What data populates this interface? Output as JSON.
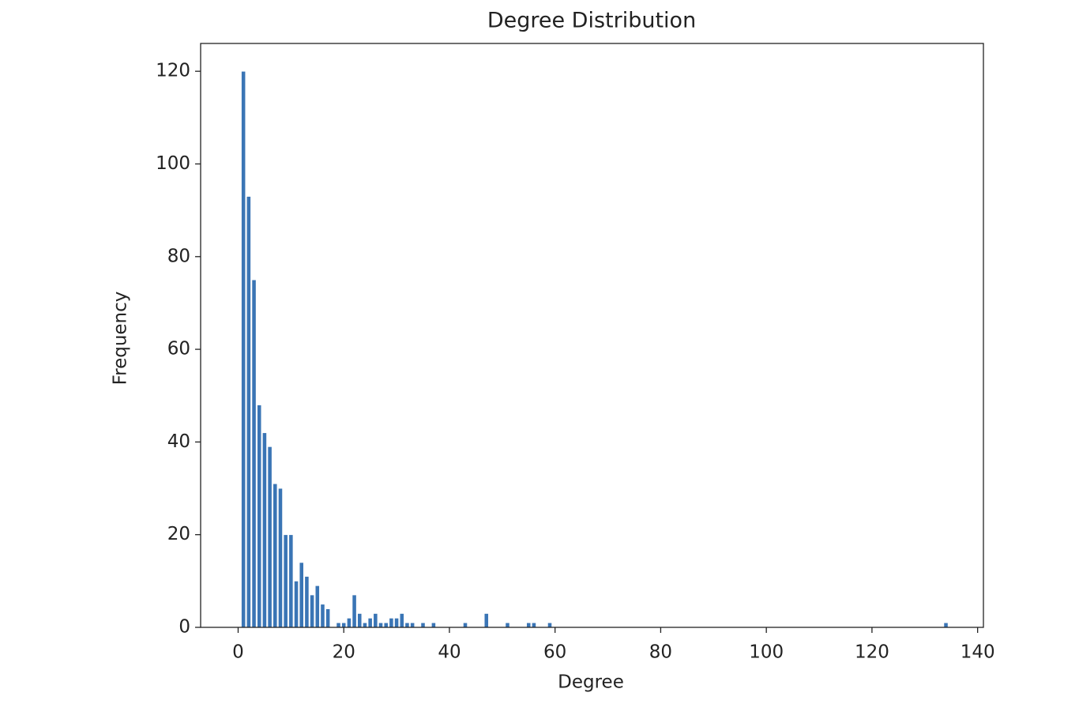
{
  "chart_data": {
    "type": "bar",
    "title": "Degree Distribution",
    "x_label": "Degree",
    "y_label": "Frequency",
    "x": [
      1,
      2,
      3,
      4,
      5,
      6,
      7,
      8,
      9,
      10,
      11,
      12,
      13,
      14,
      15,
      16,
      17,
      19,
      20,
      21,
      22,
      23,
      24,
      25,
      26,
      27,
      28,
      29,
      30,
      31,
      32,
      33,
      35,
      37,
      43,
      47,
      51,
      55,
      56,
      59,
      134
    ],
    "values": [
      120,
      93,
      75,
      48,
      42,
      39,
      31,
      30,
      20,
      20,
      10,
      14,
      11,
      7,
      9,
      5,
      4,
      1,
      1,
      2,
      7,
      3,
      1,
      2,
      3,
      1,
      1,
      2,
      2,
      3,
      1,
      1,
      1,
      1,
      1,
      3,
      1,
      1,
      1,
      1,
      1
    ],
    "color": "#3a75b5",
    "xlim": [
      -7.1,
      141.1
    ],
    "xticks": [
      0,
      20,
      40,
      60,
      80,
      100,
      120,
      140
    ],
    "ylim": [
      0,
      126
    ],
    "yticks": [
      0,
      20,
      40,
      60,
      80,
      100,
      120
    ],
    "grid": false
  }
}
